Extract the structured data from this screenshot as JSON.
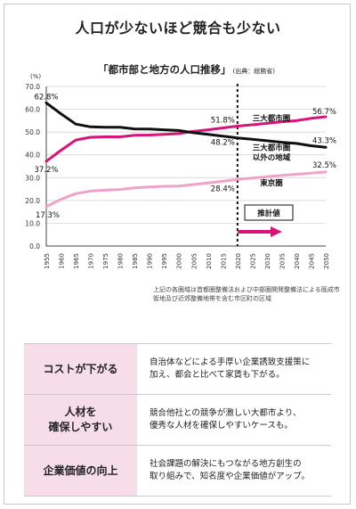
{
  "heading": "人口が少ないほど競合も少ない",
  "chart_title": "「都市部と地方の人口推移」",
  "chart_source": "(出典：総務省)",
  "note": "上記の各圏域は首都圏整備法および中部圏開発整備法による既成市街地及び近郊整備地帯を含む市区町の区域",
  "chart_data": {
    "type": "line",
    "y_unit": "(%)",
    "ylim": [
      0,
      70
    ],
    "y_ticks": [
      "0.0",
      "10.0",
      "20.0",
      "30.0",
      "40.0",
      "50.0",
      "60.0",
      "70.0"
    ],
    "x": [
      "1955",
      "1960",
      "1965",
      "1970",
      "1975",
      "1980",
      "1985",
      "1990",
      "1995",
      "2000",
      "2005",
      "2010",
      "2015",
      "2020",
      "2025",
      "2030",
      "2035",
      "2040",
      "2045",
      "2050"
    ],
    "series": [
      {
        "name": "三大都市圏",
        "color": "#d6147a",
        "values": [
          37.2,
          42.0,
          46.5,
          47.7,
          47.9,
          47.9,
          48.6,
          48.7,
          49.0,
          49.3,
          50.3,
          51.0,
          51.8,
          52.6,
          53.2,
          53.8,
          54.5,
          55.0,
          56.0,
          56.7
        ]
      },
      {
        "name": "三大都市圏以外の地域",
        "color": "#111111",
        "values": [
          62.8,
          58.0,
          53.5,
          52.3,
          52.1,
          52.1,
          51.4,
          51.3,
          51.0,
          50.7,
          49.7,
          49.0,
          48.2,
          47.4,
          46.8,
          46.2,
          45.5,
          45.0,
          44.0,
          43.3
        ]
      },
      {
        "name": "東京圏",
        "color": "#f0a3c8",
        "values": [
          17.3,
          20.5,
          23.0,
          24.1,
          24.5,
          24.8,
          25.5,
          25.9,
          26.2,
          26.3,
          27.0,
          27.7,
          28.4,
          29.2,
          29.8,
          30.4,
          31.0,
          31.5,
          32.0,
          32.5
        ]
      }
    ],
    "value_labels": {
      "sanDai_start": "37.2%",
      "sanDai_2015": "51.8%",
      "sanDai_end": "56.7%",
      "other_start": "62.8%",
      "other_2015": "48.2%",
      "other_end": "43.3%",
      "tokyo_start": "17.3%",
      "tokyo_2015": "28.4%",
      "tokyo_end": "32.5%"
    },
    "series_labels": {
      "sanDai": "三大都市圏",
      "other_line1": "三大都市圏",
      "other_line2": "以外の地域",
      "tokyo": "東京圏"
    },
    "projection_label": "推計値",
    "projection_start": "2020"
  },
  "benefits": [
    {
      "label_lines": [
        "コストが下がる"
      ],
      "desc_lines": [
        "自治体などによる手厚い企業誘致支援策に",
        "加え、都会と比べて家賃も下がる。"
      ]
    },
    {
      "label_lines": [
        "人材を",
        "確保しやすい"
      ],
      "desc_lines": [
        "競合他社との競争が激しい大都市より、",
        "優秀な人材を確保しやすいケースも。"
      ]
    },
    {
      "label_lines": [
        "企業価値の向上"
      ],
      "desc_lines": [
        "社会課題の解決にもつながる地方創生の",
        "取り組みで、知名度や企業価値がアップ。"
      ]
    }
  ]
}
